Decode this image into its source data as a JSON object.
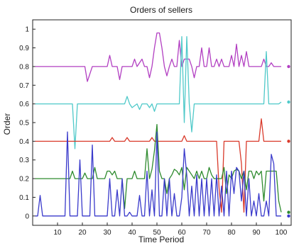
{
  "chart_data": {
    "type": "line",
    "title": "Orders of sellers",
    "xlabel": "Time Period",
    "ylabel": "Order",
    "xlim": [
      0,
      104
    ],
    "ylim": [
      -0.05,
      1.05
    ],
    "xticks": [
      10,
      20,
      30,
      40,
      50,
      60,
      70,
      80,
      90,
      100
    ],
    "yticks": [
      0,
      0.1,
      0.2,
      0.3,
      0.4,
      0.5,
      0.6,
      0.7,
      0.8,
      0.9,
      1
    ],
    "legend": "none",
    "colors": [
      "#b23fc2",
      "#4fc9c9",
      "#d93a2b",
      "#2e8b2e",
      "#3a3acb",
      "#000000"
    ],
    "series": [
      {
        "color": "#b23fc2",
        "end_marker_x": 103,
        "points": [
          [
            1,
            0.8
          ],
          [
            21,
            0.8
          ],
          [
            22,
            0.72
          ],
          [
            24,
            0.8
          ],
          [
            30,
            0.8
          ],
          [
            31,
            0.86
          ],
          [
            32,
            0.8
          ],
          [
            34,
            0.8
          ],
          [
            35,
            0.73
          ],
          [
            36,
            0.8
          ],
          [
            40,
            0.8
          ],
          [
            41,
            0.84
          ],
          [
            42,
            0.8
          ],
          [
            44,
            0.84
          ],
          [
            45,
            0.8
          ],
          [
            46,
            0.8
          ],
          [
            47,
            0.74
          ],
          [
            48,
            0.8
          ],
          [
            49,
            0.9
          ],
          [
            50,
            0.98
          ],
          [
            51,
            0.98
          ],
          [
            52,
            0.9
          ],
          [
            53,
            0.8
          ],
          [
            54,
            0.75
          ],
          [
            55,
            0.8
          ],
          [
            56,
            0.84
          ],
          [
            57,
            0.8
          ],
          [
            58,
            0.8
          ],
          [
            59,
            0.94
          ],
          [
            60,
            0.8
          ],
          [
            61,
            0.84
          ],
          [
            62,
            0.84
          ],
          [
            63,
            0.84
          ],
          [
            64,
            0.8
          ],
          [
            65,
            0.74
          ],
          [
            66,
            0.8
          ],
          [
            67,
            0.8
          ],
          [
            68,
            0.9
          ],
          [
            69,
            0.8
          ],
          [
            70,
            0.8
          ],
          [
            71,
            0.9
          ],
          [
            72,
            0.8
          ],
          [
            73,
            0.8
          ],
          [
            74,
            0.84
          ],
          [
            75,
            0.8
          ],
          [
            76,
            0.84
          ],
          [
            77,
            0.8
          ],
          [
            78,
            0.8
          ],
          [
            79,
            0.8
          ],
          [
            80,
            0.86
          ],
          [
            81,
            0.8
          ],
          [
            82,
            0.92
          ],
          [
            83,
            0.8
          ],
          [
            84,
            0.86
          ],
          [
            85,
            0.8
          ],
          [
            86,
            0.88
          ],
          [
            87,
            0.8
          ],
          [
            92,
            0.8
          ],
          [
            93,
            0.84
          ],
          [
            94,
            0.8
          ],
          [
            95,
            0.8
          ],
          [
            96,
            0.82
          ],
          [
            97,
            0.8
          ],
          [
            100,
            0.8
          ]
        ]
      },
      {
        "color": "#4fc9c9",
        "end_marker_x": 103,
        "points": [
          [
            1,
            0.6
          ],
          [
            16,
            0.6
          ],
          [
            17,
            0.36
          ],
          [
            18,
            0.6
          ],
          [
            37,
            0.6
          ],
          [
            38,
            0.64
          ],
          [
            39,
            0.6
          ],
          [
            40,
            0.58
          ],
          [
            42,
            0.6
          ],
          [
            43,
            0.57
          ],
          [
            44,
            0.6
          ],
          [
            46,
            0.6
          ],
          [
            47,
            0.58
          ],
          [
            48,
            0.6
          ],
          [
            49,
            0.56
          ],
          [
            50,
            0.6
          ],
          [
            58,
            0.6
          ],
          [
            59,
            0.6
          ],
          [
            60,
            0.96
          ],
          [
            61,
            0.5
          ],
          [
            62,
            0.96
          ],
          [
            63,
            0.6
          ],
          [
            64,
            0.45
          ],
          [
            65,
            0.6
          ],
          [
            93,
            0.6
          ],
          [
            94,
            0.88
          ],
          [
            95,
            0.6
          ],
          [
            99,
            0.6
          ],
          [
            100,
            0.61
          ]
        ]
      },
      {
        "color": "#d93a2b",
        "end_marker_x": 103,
        "points": [
          [
            1,
            0.4
          ],
          [
            31,
            0.4
          ],
          [
            32,
            0.42
          ],
          [
            33,
            0.4
          ],
          [
            37,
            0.4
          ],
          [
            38,
            0.42
          ],
          [
            39,
            0.4
          ],
          [
            40,
            0.4
          ],
          [
            41,
            0.4
          ],
          [
            42,
            0.4
          ],
          [
            47,
            0.4
          ],
          [
            48,
            0.42
          ],
          [
            49,
            0.4
          ],
          [
            60,
            0.4
          ],
          [
            61,
            0.43
          ],
          [
            62,
            0.4
          ],
          [
            73,
            0.4
          ],
          [
            74,
            0.4
          ],
          [
            75,
            0.15
          ],
          [
            76,
            0.02
          ],
          [
            77,
            0.4
          ],
          [
            83,
            0.4
          ],
          [
            84,
            0.28
          ],
          [
            85,
            0.02
          ],
          [
            86,
            0.4
          ],
          [
            91,
            0.4
          ],
          [
            92,
            0.52
          ],
          [
            93,
            0.4
          ],
          [
            100,
            0.4
          ]
        ]
      },
      {
        "color": "#2e8b2e",
        "end_marker_x": 103,
        "points": [
          [
            1,
            0.2
          ],
          [
            15,
            0.2
          ],
          [
            16,
            0.24
          ],
          [
            17,
            0.2
          ],
          [
            20,
            0.2
          ],
          [
            21,
            0.23
          ],
          [
            22,
            0.2
          ],
          [
            24,
            0.2
          ],
          [
            25,
            0.26
          ],
          [
            26,
            0.2
          ],
          [
            29,
            0.2
          ],
          [
            30,
            0.24
          ],
          [
            31,
            0.24
          ],
          [
            32,
            0.22
          ],
          [
            33,
            0.24
          ],
          [
            34,
            0.2
          ],
          [
            35,
            0.2
          ],
          [
            36,
            0.2
          ],
          [
            37,
            0.04
          ],
          [
            38,
            0.2
          ],
          [
            40,
            0.2
          ],
          [
            41,
            0.24
          ],
          [
            42,
            0.2
          ],
          [
            45,
            0.2
          ],
          [
            46,
            0.36
          ],
          [
            47,
            0.2
          ],
          [
            48,
            0.25
          ],
          [
            49,
            0.35
          ],
          [
            50,
            0.49
          ],
          [
            51,
            0.24
          ],
          [
            52,
            0.2
          ],
          [
            53,
            0.2
          ],
          [
            54,
            0.12
          ],
          [
            55,
            0.2
          ],
          [
            56,
            0.22
          ],
          [
            57,
            0.25
          ],
          [
            58,
            0.24
          ],
          [
            59,
            0.22
          ],
          [
            60,
            0.26
          ],
          [
            61,
            0.14
          ],
          [
            62,
            0.26
          ],
          [
            63,
            0.24
          ],
          [
            64,
            0.22
          ],
          [
            65,
            0.2
          ],
          [
            66,
            0.24
          ],
          [
            67,
            0.2
          ],
          [
            68,
            0.24
          ],
          [
            69,
            0.2
          ],
          [
            70,
            0.2
          ],
          [
            71,
            0.26
          ],
          [
            72,
            0.22
          ],
          [
            73,
            0.2
          ],
          [
            74,
            0.2
          ],
          [
            75,
            0.2
          ],
          [
            76,
            0.2
          ],
          [
            77,
            0.26
          ],
          [
            78,
            0.12
          ],
          [
            79,
            0.22
          ],
          [
            80,
            0.2
          ],
          [
            81,
            0.24
          ],
          [
            82,
            0.25
          ],
          [
            83,
            0.24
          ],
          [
            84,
            0.2
          ],
          [
            85,
            0.24
          ],
          [
            86,
            0.14
          ],
          [
            87,
            0.24
          ],
          [
            88,
            0.24
          ],
          [
            89,
            0.2
          ],
          [
            90,
            0.24
          ],
          [
            91,
            0.22
          ],
          [
            92,
            0.24
          ],
          [
            93,
            0.08
          ],
          [
            94,
            0.24
          ],
          [
            95,
            0.24
          ],
          [
            96,
            0.24
          ],
          [
            97,
            0.24
          ],
          [
            98,
            0.24
          ],
          [
            99,
            0.08
          ],
          [
            100,
            0.02
          ]
        ]
      },
      {
        "color": "#3a3acb",
        "end_marker_x": 103,
        "points": [
          [
            1,
            0.0
          ],
          [
            2,
            0.0
          ],
          [
            3,
            0.11
          ],
          [
            4,
            0.0
          ],
          [
            13,
            0.0
          ],
          [
            14,
            0.45
          ],
          [
            15,
            0.0
          ],
          [
            18,
            0.0
          ],
          [
            19,
            0.3
          ],
          [
            20,
            0.0
          ],
          [
            22,
            0.0
          ],
          [
            23,
            0.0
          ],
          [
            24,
            0.38
          ],
          [
            25,
            0.0
          ],
          [
            30,
            0.0
          ],
          [
            31,
            0.2
          ],
          [
            32,
            0.0
          ],
          [
            33,
            0.0
          ],
          [
            34,
            0.14
          ],
          [
            35,
            0.0
          ],
          [
            36,
            0.2
          ],
          [
            37,
            0.0
          ],
          [
            38,
            0.0
          ],
          [
            39,
            0.02
          ],
          [
            40,
            0.0
          ],
          [
            41,
            0.0
          ],
          [
            42,
            0.0
          ],
          [
            43,
            0.11
          ],
          [
            44,
            0.0
          ],
          [
            45,
            0.0
          ],
          [
            46,
            0.24
          ],
          [
            47,
            0.0
          ],
          [
            48,
            0.14
          ],
          [
            49,
            0.0
          ],
          [
            50,
            0.45
          ],
          [
            51,
            0.0
          ],
          [
            52,
            0.0
          ],
          [
            53,
            0.2
          ],
          [
            54,
            0.0
          ],
          [
            55,
            0.2
          ],
          [
            56,
            0.0
          ],
          [
            57,
            0.12
          ],
          [
            58,
            0.0
          ],
          [
            59,
            0.0
          ],
          [
            60,
            0.1
          ],
          [
            61,
            0.36
          ],
          [
            62,
            0.22
          ],
          [
            63,
            0.0
          ],
          [
            64,
            0.16
          ],
          [
            65,
            0.0
          ],
          [
            66,
            0.22
          ],
          [
            67,
            0.0
          ],
          [
            68,
            0.2
          ],
          [
            69,
            0.0
          ],
          [
            70,
            0.2
          ],
          [
            71,
            0.0
          ],
          [
            72,
            0.2
          ],
          [
            73,
            0.0
          ],
          [
            74,
            0.22
          ],
          [
            75,
            0.0
          ],
          [
            76,
            0.16
          ],
          [
            77,
            0.0
          ],
          [
            78,
            0.24
          ],
          [
            79,
            0.0
          ],
          [
            80,
            0.24
          ],
          [
            81,
            0.12
          ],
          [
            82,
            0.26
          ],
          [
            83,
            0.24
          ],
          [
            84,
            0.08
          ],
          [
            85,
            0.24
          ],
          [
            86,
            0.0
          ],
          [
            87,
            0.2
          ],
          [
            88,
            0.0
          ],
          [
            89,
            0.08
          ],
          [
            90,
            0.0
          ],
          [
            91,
            0.12
          ],
          [
            92,
            0.0
          ],
          [
            93,
            0.0
          ],
          [
            94,
            0.08
          ],
          [
            95,
            0.0
          ],
          [
            96,
            0.33
          ],
          [
            97,
            0.28
          ],
          [
            98,
            0.0
          ],
          [
            99,
            0.0
          ],
          [
            100,
            0.0
          ]
        ]
      }
    ],
    "scale_bar": {
      "x": 107,
      "y1": 0.28,
      "y2": 0.55
    }
  }
}
